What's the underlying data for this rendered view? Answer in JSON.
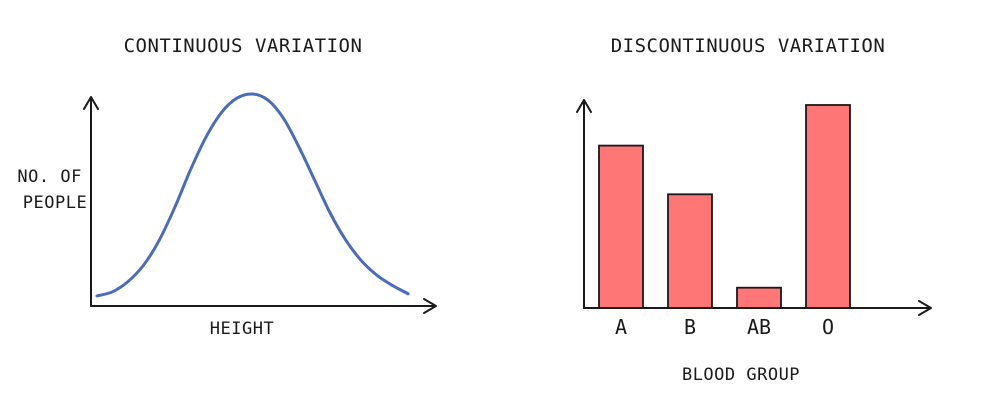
{
  "chart_data": [
    {
      "type": "line",
      "title": "CONTINUOUS VARIATION",
      "xlabel": "HEIGHT",
      "ylabel": "NO. OF PEOPLE",
      "grid": false,
      "color": "#4a6cbd",
      "x": [
        0,
        5,
        10,
        15,
        20,
        25,
        30,
        35,
        40,
        45,
        50,
        55,
        60,
        65,
        70,
        75,
        80,
        85,
        90,
        95,
        100
      ],
      "y": [
        2,
        4,
        9,
        17,
        29,
        45,
        63,
        79,
        91,
        98,
        100,
        97,
        88,
        74,
        58,
        42,
        29,
        19,
        12,
        7,
        3
      ],
      "xlim": [
        0,
        110
      ],
      "ylim": [
        0,
        100
      ]
    },
    {
      "type": "bar",
      "title": "DISCONTINUOUS VARIATION",
      "xlabel": "BLOOD GROUP",
      "ylabel": "",
      "grid": false,
      "color": "#fe7676",
      "categories": [
        "A",
        "B",
        "AB",
        "O"
      ],
      "values": [
        80,
        56,
        10,
        100
      ],
      "ylim": [
        0,
        100
      ]
    }
  ]
}
